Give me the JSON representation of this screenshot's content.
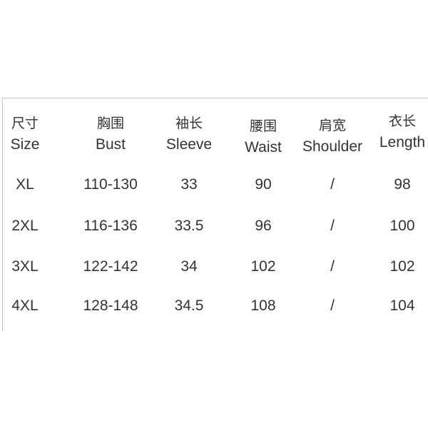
{
  "colors": {
    "background": "#ffffff",
    "text": "#333333",
    "border": "#c6c6c6"
  },
  "chart_data": {
    "type": "table",
    "columns": [
      {
        "key": "size",
        "cn": "尺寸",
        "en": "Size"
      },
      {
        "key": "bust",
        "cn": "胸围",
        "en": "Bust"
      },
      {
        "key": "sleeve",
        "cn": "袖长",
        "en": "Sleeve"
      },
      {
        "key": "waist",
        "cn": "腰围",
        "en": "Waist"
      },
      {
        "key": "shoulder",
        "cn": "肩宽",
        "en": "Shoulder"
      },
      {
        "key": "length",
        "cn": "衣长",
        "en": "Length"
      }
    ],
    "rows": [
      {
        "size": "XL",
        "bust": "110-130",
        "sleeve": "33",
        "waist": "90",
        "shoulder": "/",
        "length": "98"
      },
      {
        "size": "2XL",
        "bust": "116-136",
        "sleeve": "33.5",
        "waist": "96",
        "shoulder": "/",
        "length": "100"
      },
      {
        "size": "3XL",
        "bust": "122-142",
        "sleeve": "34",
        "waist": "102",
        "shoulder": "/",
        "length": "102"
      },
      {
        "size": "4XL",
        "bust": "128-148",
        "sleeve": "34.5",
        "waist": "108",
        "shoulder": "/",
        "length": "104"
      }
    ]
  }
}
